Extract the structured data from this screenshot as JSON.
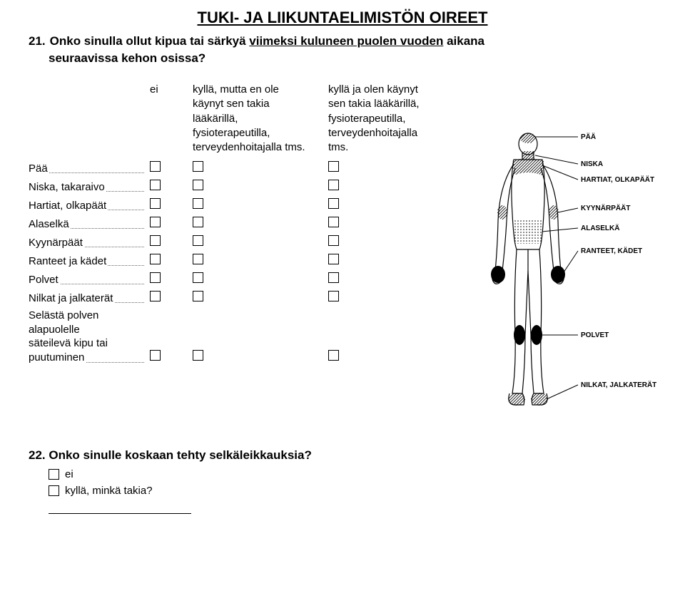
{
  "title": "TUKI- JA LIIKUNTAELIMISTÖN OIREET",
  "q21": {
    "num": "21.",
    "line1a": "Onko sinulla ollut kipua tai särkyä ",
    "line1u": "viimeksi kuluneen puolen vuoden",
    "line1b": " aikana",
    "line2": "seuraavissa kehon osissa?",
    "headers": {
      "c1": {
        "l1": "ei"
      },
      "c2": {
        "l1": "kyllä, mutta en ole",
        "l2": "käynyt sen takia",
        "l3": "lääkärillä,",
        "l4": "fysioterapeutilla,",
        "l5": "terveydenhoitajalla tms."
      },
      "c3": {
        "l1": "kyllä ja olen käynyt",
        "l2": "sen takia lääkärillä,",
        "l3": "fysioterapeutilla,",
        "l4": "terveydenhoitajalla",
        "l5": "tms."
      }
    },
    "rows": [
      {
        "label": "Pää"
      },
      {
        "label": "Niska, takaraivo"
      },
      {
        "label": "Hartiat, olkapäät"
      },
      {
        "label": "Alaselkä"
      },
      {
        "label": "Kyynärpäät"
      },
      {
        "label": "Ranteet ja kädet"
      },
      {
        "label": "Polvet"
      },
      {
        "label": "Nilkat ja jalkaterät"
      },
      {
        "label": "Selästä polven alapuolelle",
        "label2": "säteilevä kipu tai puutuminen"
      }
    ]
  },
  "figure_labels": {
    "paa": "PÄÄ",
    "niska": "NISKA",
    "hartiat": "HARTIAT, OLKAPÄÄT",
    "kyynar": "KYYNÄRPÄÄT",
    "alaselka": "ALASELKÄ",
    "ranteet": "RANTEET, KÄDET",
    "polvet": "POLVET",
    "nilkat": "NILKAT, JALKATERÄT"
  },
  "q22": {
    "title": "22. Onko sinulle koskaan tehty selkäleikkauksia?",
    "opt1": "ei",
    "opt2": "kyllä, minkä takia?"
  },
  "colors": {
    "text": "#000000",
    "bg": "#ffffff",
    "dots": "#666666"
  }
}
